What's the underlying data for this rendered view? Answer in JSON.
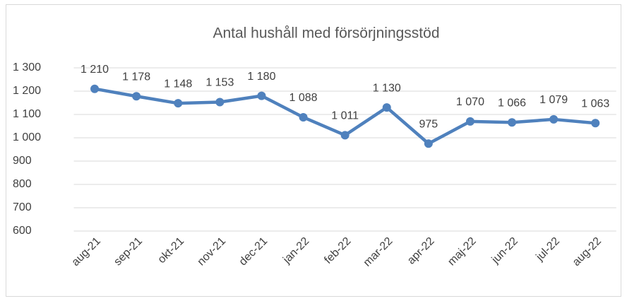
{
  "chart_data": {
    "type": "line",
    "title": "Antal hushåll med försörjningsstöd",
    "categories": [
      "aug-21",
      "sep-21",
      "okt-21",
      "nov-21",
      "dec-21",
      "jan-22",
      "feb-22",
      "mar-22",
      "apr-22",
      "maj-22",
      "jun-22",
      "jul-22",
      "aug-22"
    ],
    "values": [
      1210,
      1178,
      1148,
      1153,
      1180,
      1088,
      1011,
      1130,
      975,
      1070,
      1066,
      1079,
      1063
    ],
    "value_labels": [
      "1 210",
      "1 178",
      "1 148",
      "1 153",
      "1 180",
      "1 088",
      "1 011",
      "1 130",
      "975",
      "1 070",
      "1 066",
      "1 079",
      "1 063"
    ],
    "color": "#4f81bd",
    "ylim": [
      600,
      1300
    ],
    "yticks": [
      600,
      700,
      800,
      900,
      {
        "value": 1000,
        "label": "1 000"
      },
      {
        "value": 1100,
        "label": "1 100"
      },
      {
        "value": 1200,
        "label": "1 200"
      },
      {
        "value": 1300,
        "label": "1 300"
      }
    ],
    "grid": true
  }
}
